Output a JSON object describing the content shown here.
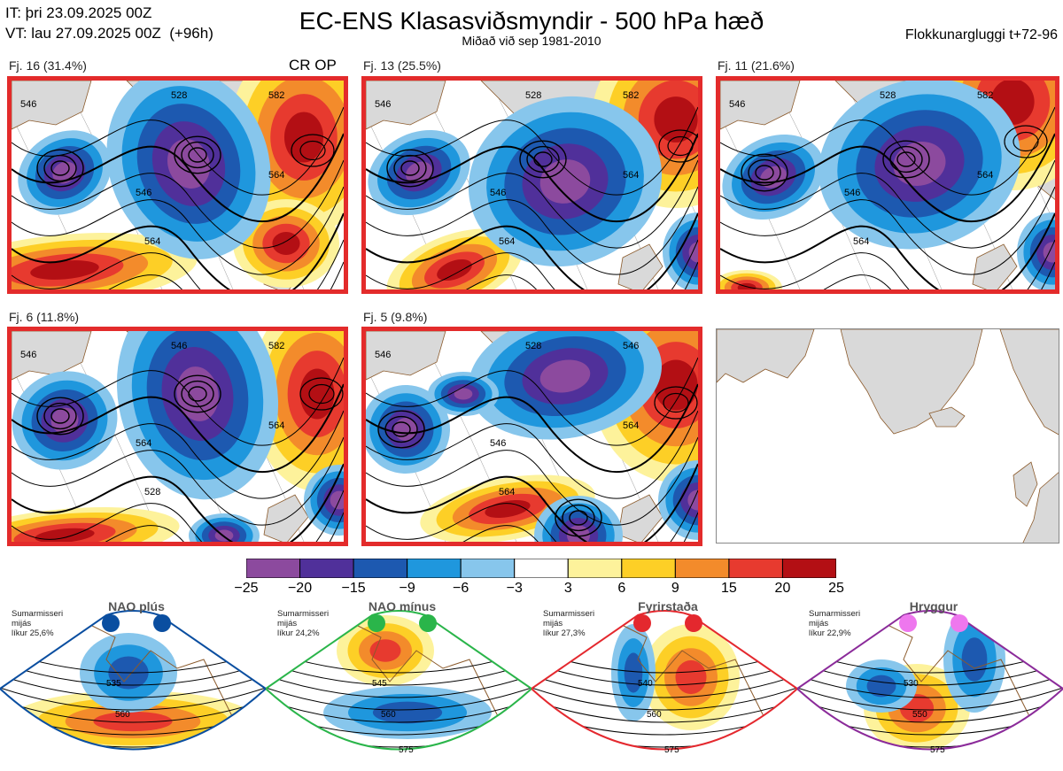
{
  "header": {
    "it_line": "IT: þri 23.09.2025 00Z",
    "vt_line": "VT: lau 27.09.2025 00Z  (+96h)",
    "title": "EC-ENS Klasasviðsmyndir - 500 hPa hæð",
    "subtitle": "Miðað við sep 1981-2010",
    "window": "Flokkunargluggi t+72-96"
  },
  "panels": [
    {
      "label": "Fj. 16 (31.4%)",
      "badge": "CR OP",
      "contour_labels": [
        "528",
        "546",
        "564",
        "582",
        "546",
        "564"
      ]
    },
    {
      "label": "Fj. 13 (25.5%)",
      "contour_labels": [
        "528",
        "546",
        "564",
        "582",
        "546",
        "564"
      ]
    },
    {
      "label": "Fj. 11 (21.6%)",
      "contour_labels": [
        "528",
        "546",
        "564",
        "582",
        "546",
        "564"
      ]
    },
    {
      "label": "Fj. 6 (11.8%)",
      "contour_labels": [
        "546",
        "564",
        "528",
        "582",
        "546",
        "564"
      ]
    },
    {
      "label": "Fj. 5 (9.8%)",
      "contour_labels": [
        "528",
        "546",
        "564",
        "546",
        "546",
        "564"
      ]
    }
  ],
  "colors": {
    "border": "#e32b2b",
    "land": "#d9d9d9",
    "coast": "#8b5a2b"
  },
  "chart_data": {
    "type": "heatmap",
    "title": "EC-ENS Klasasviðsmyndir - 500 hPa hæð",
    "colorbar": {
      "ticks": [
        "−25",
        "−20",
        "−15",
        "−9",
        "−6",
        "−3",
        "3",
        "6",
        "9",
        "15",
        "20",
        "25"
      ],
      "bins": [
        {
          "from": -25,
          "to": -20,
          "color": "#8c4a9e"
        },
        {
          "from": -20,
          "to": -15,
          "color": "#50309a"
        },
        {
          "from": -15,
          "to": -9,
          "color": "#1d59b0"
        },
        {
          "from": -9,
          "to": -6,
          "color": "#1f97dd"
        },
        {
          "from": -6,
          "to": -3,
          "color": "#87c6ec"
        },
        {
          "from": -3,
          "to": 3,
          "color": "#ffffff"
        },
        {
          "from": 3,
          "to": 6,
          "color": "#fdf29b"
        },
        {
          "from": 6,
          "to": 9,
          "color": "#fdcf26"
        },
        {
          "from": 9,
          "to": 15,
          "color": "#f38b2b"
        },
        {
          "from": 15,
          "to": 20,
          "color": "#e73a2f"
        },
        {
          "from": 20,
          "to": 25,
          "color": "#b30f14"
        }
      ]
    }
  },
  "regimes": [
    {
      "name": "NAO plús",
      "info": [
        "Sumarmisseri",
        "mijás",
        "líkur 25,6%"
      ],
      "dot_color": "#0a4ea0",
      "frame_color": "#0a4ea0",
      "contour_labels": [
        "535",
        "560"
      ]
    },
    {
      "name": "NAO mínus",
      "info": [
        "Sumarmisseri",
        "mijás",
        "líkur 24,2%"
      ],
      "dot_color": "#2ab54a",
      "frame_color": "#2ab54a",
      "contour_labels": [
        "545",
        "560",
        "575"
      ]
    },
    {
      "name": "Fyrirstaða",
      "info": [
        "Sumarmisseri",
        "mijás",
        "líkur 27,3%"
      ],
      "dot_color": "#e4282e",
      "frame_color": "#e4282e",
      "contour_labels": [
        "540",
        "560",
        "575"
      ]
    },
    {
      "name": "Hryggur",
      "info": [
        "Sumarmisseri",
        "mijás",
        "líkur 22,9%"
      ],
      "dot_color": "#ee77ee",
      "frame_color": "#8b2b9a",
      "contour_labels": [
        "530",
        "550",
        "575"
      ]
    }
  ]
}
